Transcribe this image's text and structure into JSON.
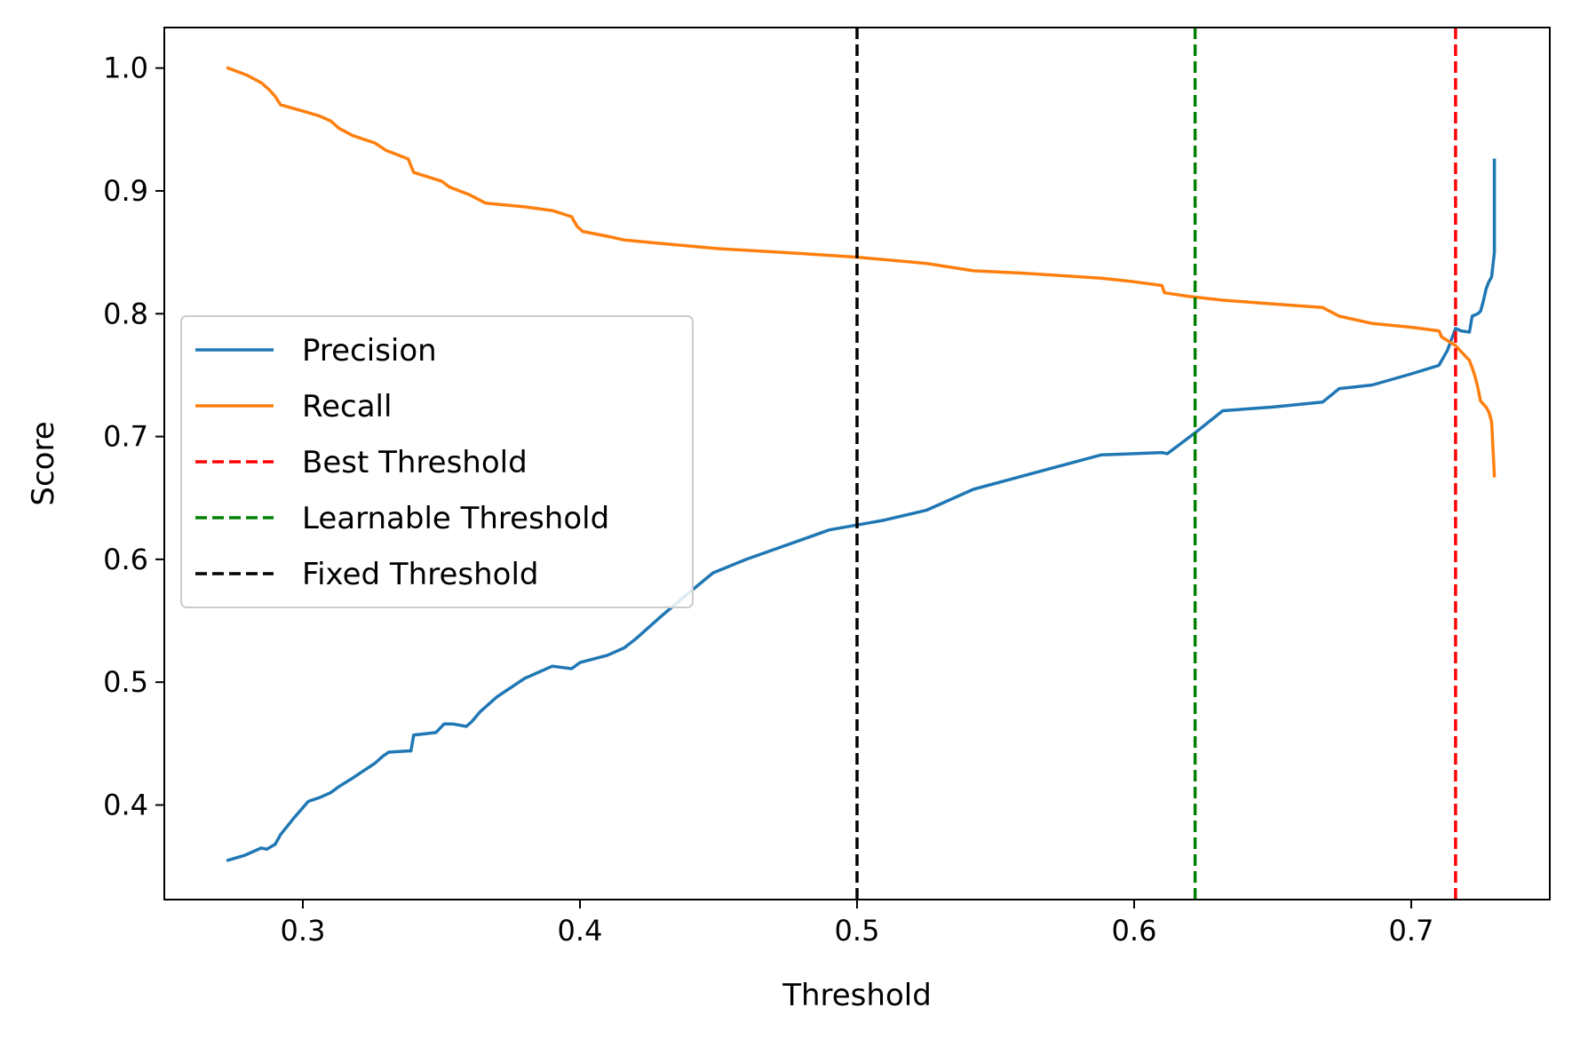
{
  "chart_data": {
    "type": "line",
    "title": "",
    "xlabel": "Threshold",
    "ylabel": "Score",
    "xlim": [
      0.25,
      0.75
    ],
    "ylim": [
      0.323,
      1.033
    ],
    "xticks": [
      0.3,
      0.4,
      0.5,
      0.6,
      0.7
    ],
    "xtick_labels": [
      "0.3",
      "0.4",
      "0.5",
      "0.6",
      "0.7"
    ],
    "yticks": [
      0.4,
      0.5,
      0.6,
      0.7,
      0.8,
      0.9,
      1.0
    ],
    "ytick_labels": [
      "0.4",
      "0.5",
      "0.6",
      "0.7",
      "0.8",
      "0.9",
      "1.0"
    ],
    "grid": false,
    "legend_position": "center-left",
    "series": [
      {
        "name": "Precision",
        "color": "#1f77b4",
        "dash": "solid",
        "x": [
          0.273,
          0.279,
          0.285,
          0.287,
          0.29,
          0.292,
          0.297,
          0.302,
          0.306,
          0.31,
          0.313,
          0.318,
          0.322,
          0.326,
          0.329,
          0.331,
          0.338,
          0.339,
          0.34,
          0.348,
          0.351,
          0.354,
          0.359,
          0.361,
          0.364,
          0.37,
          0.38,
          0.39,
          0.397,
          0.4,
          0.41,
          0.416,
          0.42,
          0.43,
          0.44,
          0.448,
          0.46,
          0.48,
          0.49,
          0.5,
          0.51,
          0.525,
          0.542,
          0.56,
          0.588,
          0.61,
          0.612,
          0.622,
          0.632,
          0.65,
          0.668,
          0.674,
          0.686,
          0.7,
          0.71,
          0.713,
          0.716,
          0.718,
          0.721,
          0.722,
          0.724,
          0.725,
          0.726,
          0.727,
          0.728,
          0.729,
          0.73,
          0.73
        ],
        "values": [
          0.355,
          0.359,
          0.365,
          0.364,
          0.368,
          0.376,
          0.39,
          0.403,
          0.406,
          0.41,
          0.415,
          0.422,
          0.428,
          0.434,
          0.44,
          0.443,
          0.444,
          0.444,
          0.457,
          0.459,
          0.466,
          0.466,
          0.464,
          0.468,
          0.476,
          0.488,
          0.503,
          0.513,
          0.511,
          0.516,
          0.522,
          0.528,
          0.535,
          0.555,
          0.574,
          0.589,
          0.6,
          0.616,
          0.624,
          0.628,
          0.632,
          0.64,
          0.657,
          0.668,
          0.685,
          0.687,
          0.686,
          0.703,
          0.721,
          0.724,
          0.728,
          0.739,
          0.742,
          0.751,
          0.758,
          0.77,
          0.788,
          0.786,
          0.785,
          0.798,
          0.8,
          0.802,
          0.81,
          0.82,
          0.826,
          0.83,
          0.85,
          0.925
        ]
      },
      {
        "name": "Recall",
        "color": "#ff7f0e",
        "dash": "solid",
        "x": [
          0.273,
          0.28,
          0.285,
          0.288,
          0.29,
          0.292,
          0.3,
          0.306,
          0.31,
          0.313,
          0.318,
          0.326,
          0.33,
          0.338,
          0.34,
          0.35,
          0.353,
          0.36,
          0.366,
          0.38,
          0.39,
          0.397,
          0.399,
          0.401,
          0.41,
          0.416,
          0.43,
          0.45,
          0.48,
          0.5,
          0.525,
          0.542,
          0.56,
          0.588,
          0.6,
          0.61,
          0.611,
          0.62,
          0.632,
          0.65,
          0.668,
          0.674,
          0.686,
          0.7,
          0.71,
          0.711,
          0.716,
          0.718,
          0.721,
          0.722,
          0.723,
          0.724,
          0.725,
          0.727,
          0.728,
          0.729,
          0.73
        ],
        "values": [
          1.0,
          0.994,
          0.988,
          0.982,
          0.977,
          0.97,
          0.965,
          0.961,
          0.957,
          0.951,
          0.945,
          0.939,
          0.933,
          0.926,
          0.915,
          0.908,
          0.903,
          0.897,
          0.89,
          0.887,
          0.884,
          0.879,
          0.871,
          0.867,
          0.863,
          0.86,
          0.857,
          0.853,
          0.849,
          0.846,
          0.841,
          0.835,
          0.833,
          0.829,
          0.826,
          0.823,
          0.817,
          0.814,
          0.811,
          0.808,
          0.805,
          0.798,
          0.792,
          0.789,
          0.786,
          0.781,
          0.774,
          0.769,
          0.762,
          0.756,
          0.749,
          0.74,
          0.729,
          0.724,
          0.72,
          0.712,
          0.668
        ]
      }
    ],
    "reference_lines": [
      {
        "name": "Best Threshold",
        "x": 0.716,
        "color": "#ff0000",
        "dash": "dashed"
      },
      {
        "name": "Learnable Threshold",
        "x": 0.622,
        "color": "#008000",
        "dash": "dashed"
      },
      {
        "name": "Fixed Threshold",
        "x": 0.5,
        "color": "#000000",
        "dash": "dashed"
      }
    ],
    "legend": [
      "Precision",
      "Recall",
      "Best Threshold",
      "Learnable Threshold",
      "Fixed Threshold"
    ]
  }
}
